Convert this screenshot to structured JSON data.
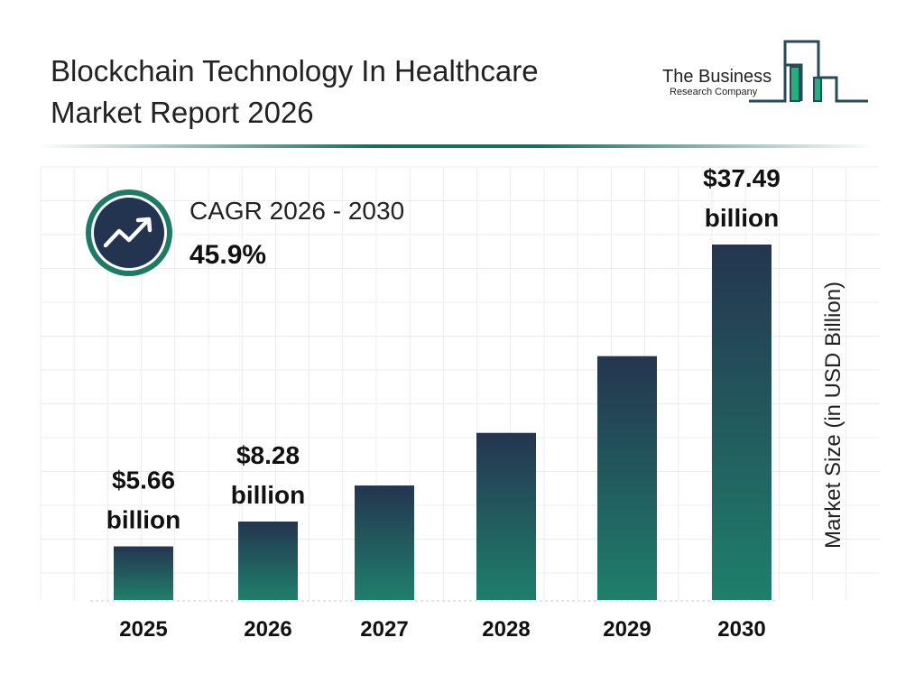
{
  "title_line1": "Blockchain Technology In Healthcare",
  "title_line2": "Market Report 2026",
  "logo": {
    "line1": "The Business",
    "line2": "Research Company"
  },
  "cagr": {
    "label": "CAGR 2026 - 2030",
    "value": "45.9%",
    "icon": "trending-up-icon"
  },
  "colors": {
    "bar_top": "#253550",
    "bar_bottom": "#1f7f6b",
    "accent": "#1d7a64",
    "navy": "#233451"
  },
  "chart_data": {
    "type": "bar",
    "title": "Blockchain Technology In Healthcare Market Report 2026",
    "xlabel": "",
    "ylabel": "Market Size (in USD Billion)",
    "categories": [
      "2025",
      "2026",
      "2027",
      "2028",
      "2029",
      "2030"
    ],
    "values": [
      5.66,
      8.28,
      12.08,
      17.63,
      25.72,
      37.49
    ],
    "data_labels": [
      {
        "index": 0,
        "line1": "$5.66",
        "line2": "billion"
      },
      {
        "index": 1,
        "line1": "$8.28",
        "line2": "billion"
      },
      {
        "index": 5,
        "line1": "$37.49",
        "line2": "billion"
      }
    ],
    "grid": true,
    "ylim": [
      0,
      37.49
    ]
  }
}
